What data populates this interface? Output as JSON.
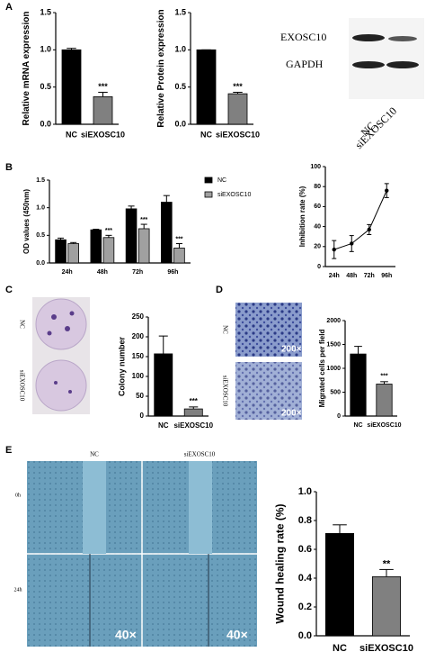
{
  "figure": {
    "panel_labels": [
      "A",
      "B",
      "C",
      "D",
      "E"
    ],
    "blot": {
      "bands": [
        "EXOSC10",
        "GAPDH"
      ],
      "lanes": [
        "NC",
        "siEXOSC10"
      ]
    },
    "colony_rows": [
      "NC",
      "siEXOSC10"
    ],
    "migration_rows": [
      "NC",
      "siEXOSC10"
    ],
    "migration_magnification": "200×",
    "wound_columns": [
      "NC",
      "siEXOSC10"
    ],
    "wound_rows": [
      "0h",
      "24h"
    ],
    "wound_magnification": "40×"
  },
  "chart_data": [
    {
      "type": "bar",
      "y_label": "Relative mRNA expression",
      "categories": [
        "NC",
        "siEXOSC10"
      ],
      "values": [
        1.0,
        0.37
      ],
      "errors": [
        0.02,
        0.06
      ],
      "annotations": [
        null,
        "***"
      ],
      "colors": [
        "#000000",
        "#808080"
      ],
      "ylim": [
        0,
        1.5
      ],
      "yticks": [
        {
          "value": 0,
          "label": "0.0"
        },
        0.5,
        {
          "value": 1,
          "label": "1.0"
        },
        1.5
      ]
    },
    {
      "type": "bar",
      "y_label": "Relative Protein expression",
      "categories": [
        "NC",
        "siEXOSC10"
      ],
      "values": [
        1.0,
        0.41
      ],
      "errors": [
        0,
        0.02
      ],
      "annotations": [
        null,
        "***"
      ],
      "colors": [
        "#000000",
        "#808080"
      ],
      "ylim": [
        0,
        1.5
      ],
      "yticks": [
        {
          "value": 0,
          "label": "0.0"
        },
        0.5,
        {
          "value": 1,
          "label": "1.0"
        },
        1.5
      ]
    },
    {
      "type": "bar",
      "y_label": "OD values (450nm)",
      "categories": [
        "24h",
        "48h",
        "72h",
        "96h"
      ],
      "legend": "right",
      "ylim": [
        0,
        1.5
      ],
      "yticks": [
        {
          "value": 0,
          "label": "0.0"
        },
        0.5,
        {
          "value": 1,
          "label": "1.0"
        },
        1.5
      ],
      "series": [
        {
          "name": "NC",
          "color": "#000000",
          "values": [
            0.42,
            0.6,
            0.98,
            1.1
          ],
          "errors": [
            0.03,
            0.01,
            0.05,
            0.12
          ],
          "annotations": [
            null,
            null,
            null,
            null
          ]
        },
        {
          "name": "siEXOSC10",
          "color": "#a0a0a0",
          "values": [
            0.35,
            0.46,
            0.62,
            0.27
          ],
          "errors": [
            0.02,
            0.04,
            0.08,
            0.08
          ],
          "annotations": [
            null,
            "***",
            "***",
            "***"
          ]
        }
      ]
    },
    {
      "type": "line",
      "y_label": "Inhibition rate (%)",
      "categories": [
        "24h",
        "48h",
        "72h",
        "96h"
      ],
      "values": [
        17,
        23,
        37,
        76
      ],
      "errors": [
        9,
        8,
        5,
        7
      ],
      "color": "#000000",
      "ylim": [
        0,
        100
      ],
      "yticks": [
        0,
        20,
        40,
        60,
        80,
        100
      ]
    },
    {
      "type": "bar",
      "y_label": "Colony number",
      "categories": [
        "NC",
        "siEXOSC10"
      ],
      "values": [
        157,
        18
      ],
      "errors": [
        45,
        5
      ],
      "annotations": [
        null,
        "***"
      ],
      "colors": [
        "#000000",
        "#808080"
      ],
      "ylim": [
        0,
        250
      ],
      "yticks": [
        0,
        50,
        100,
        150,
        200,
        250
      ]
    },
    {
      "type": "bar",
      "y_label": "Migrated cells per field",
      "categories": [
        "NC",
        "siEXOSC10"
      ],
      "values": [
        1300,
        670
      ],
      "errors": [
        160,
        50
      ],
      "annotations": [
        null,
        "***"
      ],
      "colors": [
        "#000000",
        "#808080"
      ],
      "ylim": [
        0,
        2000
      ],
      "yticks": [
        0,
        500,
        1000,
        1500,
        2000
      ]
    },
    {
      "type": "bar",
      "y_label": "Wound healing rate (%)",
      "categories": [
        "NC",
        "siEXOSC10"
      ],
      "values": [
        0.71,
        0.41
      ],
      "errors": [
        0.06,
        0.05
      ],
      "annotations": [
        null,
        "**"
      ],
      "colors": [
        "#000000",
        "#808080"
      ],
      "ylim": [
        0,
        1
      ],
      "yticks": [
        {
          "value": 0,
          "label": "0.0"
        },
        0.2,
        0.4,
        0.6,
        0.8,
        {
          "value": 1,
          "label": "1.0"
        }
      ]
    }
  ]
}
